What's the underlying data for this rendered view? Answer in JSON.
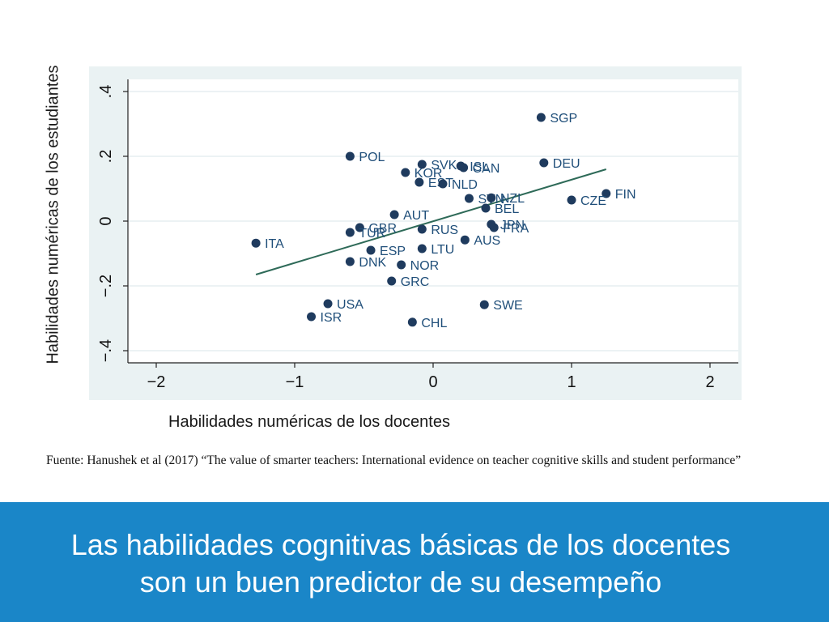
{
  "chart_data": {
    "type": "scatter",
    "xlabel": "Habilidades numéricas de los docentes",
    "ylabel": "Habilidades numéricas de los estudiantes",
    "xlim": [
      -2.2,
      2.2
    ],
    "ylim": [
      -0.45,
      0.45
    ],
    "x_ticks": [
      -2,
      -1,
      0,
      1,
      2
    ],
    "x_tick_labels": [
      "−2",
      "−1",
      "0",
      "1",
      "2"
    ],
    "y_ticks": [
      -0.4,
      -0.2,
      0,
      0.2,
      0.4
    ],
    "y_tick_labels": [
      "−.4",
      "−.2",
      "0",
      ".2",
      ".4"
    ],
    "grid": "horizontal",
    "colors": {
      "plot_bg": "#ffffff",
      "outer_bg": "#eaf2f3",
      "grid": "#e6eef0",
      "marker": "#1f3b5e",
      "fit_line": "#2e6a58"
    },
    "points": [
      {
        "label": "SGP",
        "x": 0.78,
        "y": 0.32
      },
      {
        "label": "POL",
        "x": -0.6,
        "y": 0.2
      },
      {
        "label": "DEU",
        "x": 0.8,
        "y": 0.18
      },
      {
        "label": "SVK",
        "x": -0.08,
        "y": 0.175
      },
      {
        "label": "ISL",
        "x": 0.2,
        "y": 0.17
      },
      {
        "label": "CAN",
        "x": 0.22,
        "y": 0.165
      },
      {
        "label": "KOR",
        "x": -0.2,
        "y": 0.15
      },
      {
        "label": "EST",
        "x": -0.1,
        "y": 0.12
      },
      {
        "label": "NLD",
        "x": 0.07,
        "y": 0.115
      },
      {
        "label": "FIN",
        "x": 1.25,
        "y": 0.085
      },
      {
        "label": "SVN",
        "x": 0.26,
        "y": 0.07
      },
      {
        "label": "NZL",
        "x": 0.42,
        "y": 0.072
      },
      {
        "label": "CZE",
        "x": 1.0,
        "y": 0.065
      },
      {
        "label": "BEL",
        "x": 0.38,
        "y": 0.04
      },
      {
        "label": "AUT",
        "x": -0.28,
        "y": 0.02
      },
      {
        "label": "JPN",
        "x": 0.42,
        "y": -0.01
      },
      {
        "label": "FRA",
        "x": 0.44,
        "y": -0.02
      },
      {
        "label": "GBR",
        "x": -0.53,
        "y": -0.02
      },
      {
        "label": "RUS",
        "x": -0.08,
        "y": -0.025
      },
      {
        "label": "TUR",
        "x": -0.6,
        "y": -0.035
      },
      {
        "label": "AUS",
        "x": 0.23,
        "y": -0.058
      },
      {
        "label": "ITA",
        "x": -1.28,
        "y": -0.068
      },
      {
        "label": "ESP",
        "x": -0.45,
        "y": -0.09
      },
      {
        "label": "LTU",
        "x": -0.08,
        "y": -0.085
      },
      {
        "label": "DNK",
        "x": -0.6,
        "y": -0.125
      },
      {
        "label": "NOR",
        "x": -0.23,
        "y": -0.135
      },
      {
        "label": "GRC",
        "x": -0.3,
        "y": -0.185
      },
      {
        "label": "USA",
        "x": -0.76,
        "y": -0.255
      },
      {
        "label": "SWE",
        "x": 0.37,
        "y": -0.258
      },
      {
        "label": "ISR",
        "x": -0.88,
        "y": -0.295
      },
      {
        "label": "CHL",
        "x": -0.15,
        "y": -0.312
      }
    ],
    "fit_line": {
      "x": [
        -1.28,
        1.25
      ],
      "y": [
        -0.165,
        0.16
      ]
    }
  },
  "source": "Fuente: Hanushek et al (2017) “The value of smarter teachers: International evidence on teacher cognitive skills and student performance”",
  "banner": {
    "title_line1": "Las habilidades cognitivas básicas de los docentes",
    "title_line2": "son un buen predictor de su desempeño"
  }
}
